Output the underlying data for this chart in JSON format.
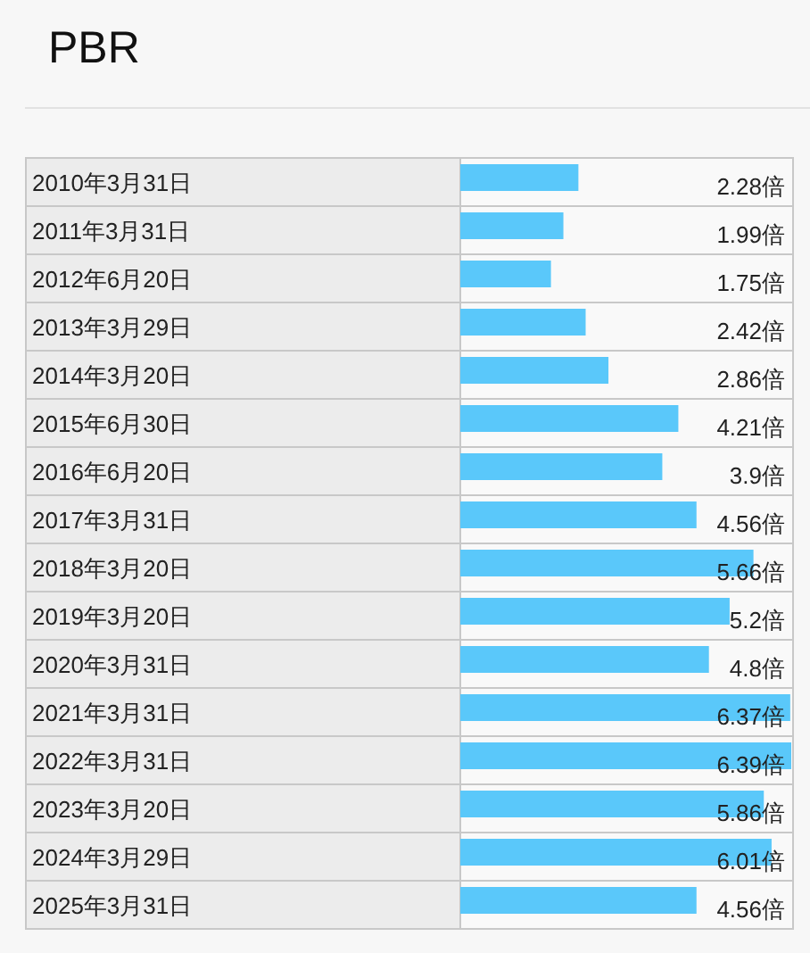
{
  "chart_data": {
    "type": "bar",
    "orientation": "horizontal",
    "title": "PBR",
    "color": "#5ac8fa",
    "categories": [
      "2010年3月31日",
      "2011年3月31日",
      "2012年6月20日",
      "2013年3月29日",
      "2014年3月20日",
      "2015年6月30日",
      "2016年6月20日",
      "2017年3月31日",
      "2018年3月20日",
      "2019年3月20日",
      "2020年3月31日",
      "2021年3月31日",
      "2022年3月31日",
      "2023年3月20日",
      "2024年3月29日",
      "2025年3月31日"
    ],
    "values": [
      2.28,
      1.99,
      1.75,
      2.42,
      2.86,
      4.21,
      3.9,
      4.56,
      5.66,
      5.2,
      4.8,
      6.37,
      6.39,
      5.86,
      6.01,
      4.56
    ],
    "value_labels": [
      "2.28倍",
      "1.99倍",
      "1.75倍",
      "2.42倍",
      "2.86倍",
      "4.21倍",
      "3.9倍",
      "4.56倍",
      "5.66倍",
      "5.2倍",
      "4.8倍",
      "6.37倍",
      "6.39倍",
      "5.86倍",
      "6.01倍",
      "4.56倍"
    ]
  }
}
